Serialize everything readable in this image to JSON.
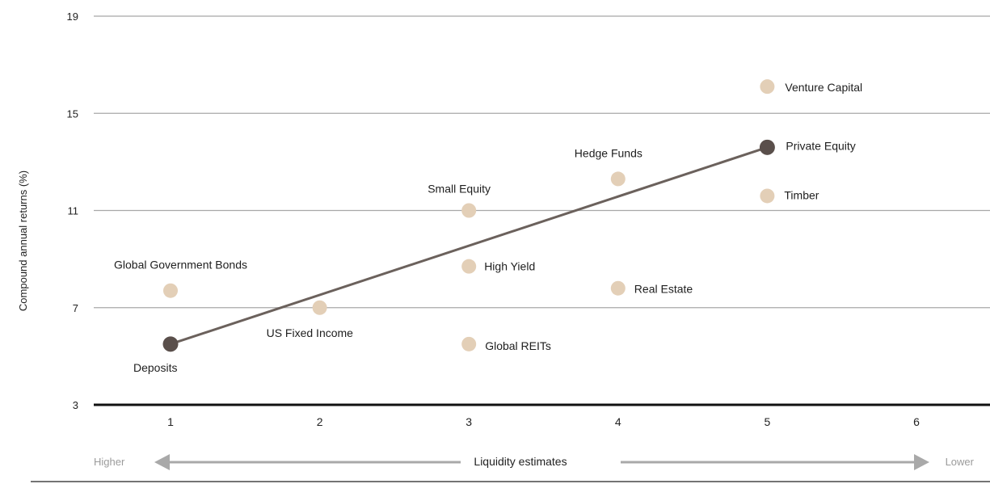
{
  "chart_data": {
    "type": "scatter",
    "xlabel": "Liquidity estimates",
    "ylabel": "Compound annual returns (%)",
    "xlim": [
      0.5,
      6.4
    ],
    "ylim": [
      3,
      19
    ],
    "x_ticks": [
      "1",
      "2",
      "3",
      "4",
      "5",
      "6"
    ],
    "y_ticks": [
      "3",
      "7",
      "11",
      "15",
      "19"
    ],
    "grid": "horizontal",
    "liquidity_scale": {
      "left": "Higher",
      "right": "Lower"
    },
    "points": [
      {
        "label": "Deposits",
        "x": 1,
        "y": 5.5,
        "group": "line"
      },
      {
        "label": "Global Government Bonds",
        "x": 1,
        "y": 7.7,
        "group": "asset"
      },
      {
        "label": "US Fixed Income",
        "x": 2,
        "y": 7.0,
        "group": "asset"
      },
      {
        "label": "Small Equity",
        "x": 3,
        "y": 11.0,
        "group": "asset"
      },
      {
        "label": "High Yield",
        "x": 3,
        "y": 8.7,
        "group": "asset"
      },
      {
        "label": "Global REITs",
        "x": 3,
        "y": 5.5,
        "group": "asset"
      },
      {
        "label": "Hedge Funds",
        "x": 4,
        "y": 12.3,
        "group": "asset"
      },
      {
        "label": "Real Estate",
        "x": 4,
        "y": 7.8,
        "group": "asset"
      },
      {
        "label": "Venture Capital",
        "x": 5,
        "y": 16.1,
        "group": "asset"
      },
      {
        "label": "Private Equity",
        "x": 5,
        "y": 13.6,
        "group": "line"
      },
      {
        "label": "Timber",
        "x": 5,
        "y": 11.6,
        "group": "asset"
      }
    ],
    "trend_line": {
      "from": [
        1,
        5.5
      ],
      "to": [
        5,
        13.6
      ]
    },
    "colors": {
      "asset_point": "#e3cfb7",
      "line_point": "#5a4f4b",
      "trend_line": "#6b615c",
      "grid": "#a8a8a8",
      "baseline": "#111111",
      "axis_text": "#222222",
      "arrow": "#a9a9a9",
      "scale_label": "#9b9b9b"
    }
  }
}
